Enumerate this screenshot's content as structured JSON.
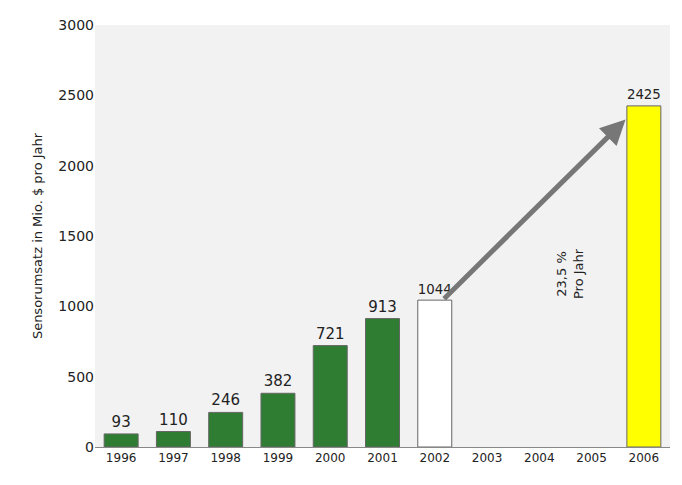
{
  "chart_data": {
    "type": "bar",
    "y_label": "Sensorumsatz in Mio. $ pro Jahr",
    "categories": [
      "1996",
      "1997",
      "1998",
      "1999",
      "2000",
      "2001",
      "2002",
      "2003",
      "2004",
      "2005",
      "2006"
    ],
    "values": [
      93,
      110,
      246,
      382,
      721,
      913,
      1044,
      null,
      null,
      null,
      2425
    ],
    "colors": [
      "#2e7d32",
      "#2e7d32",
      "#2e7d32",
      "#2e7d32",
      "#2e7d32",
      "#2e7d32",
      "#ffffff",
      "#2e7d32",
      "#2e7d32",
      "#2e7d32",
      "#ffff00"
    ],
    "ylim": [
      0,
      3000
    ],
    "yticks": [
      0,
      500,
      1000,
      1500,
      2000,
      2500,
      3000
    ],
    "grid": false,
    "data_labels": true,
    "annotation": [
      "23,5 %",
      "Pro Jahr"
    ]
  }
}
